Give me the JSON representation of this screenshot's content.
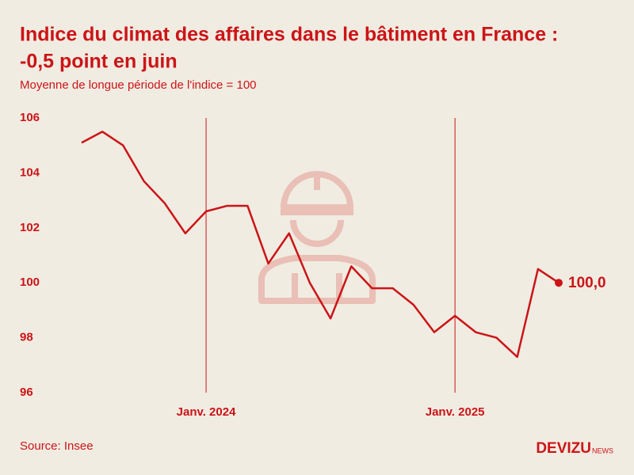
{
  "chart_data": {
    "type": "line",
    "title": [
      "Indice du climat des affaires dans le bâtiment en France :",
      "-0,5 point en juin"
    ],
    "subtitle": "Moyenne de longue période de l'indice = 100",
    "source": "Source: Insee",
    "brand": {
      "name": "DEVIZU",
      "suffix": "NEWS"
    },
    "categories": [
      null,
      null,
      null,
      null,
      null,
      null,
      "Janv. 2024",
      null,
      null,
      null,
      null,
      null,
      null,
      null,
      null,
      null,
      null,
      null,
      "Janv. 2025",
      null,
      null,
      null,
      null,
      null
    ],
    "series": [
      {
        "name": "Indice du climat des affaires",
        "color": "#cc1417",
        "values": [
          105.1,
          105.5,
          105.0,
          103.7,
          102.9,
          101.8,
          102.6,
          102.8,
          102.8,
          100.7,
          101.8,
          100.0,
          98.7,
          100.6,
          99.8,
          99.8,
          99.2,
          98.2,
          98.8,
          98.2,
          98.0,
          97.3,
          100.5,
          100.0
        ],
        "value_labels": [
          null,
          null,
          null,
          null,
          null,
          null,
          null,
          null,
          null,
          null,
          null,
          null,
          null,
          null,
          null,
          null,
          null,
          null,
          null,
          null,
          null,
          null,
          null,
          "100,0"
        ]
      }
    ],
    "ylim": [
      96,
      106
    ],
    "yticks": [
      96,
      98,
      100,
      102,
      104,
      106
    ]
  }
}
